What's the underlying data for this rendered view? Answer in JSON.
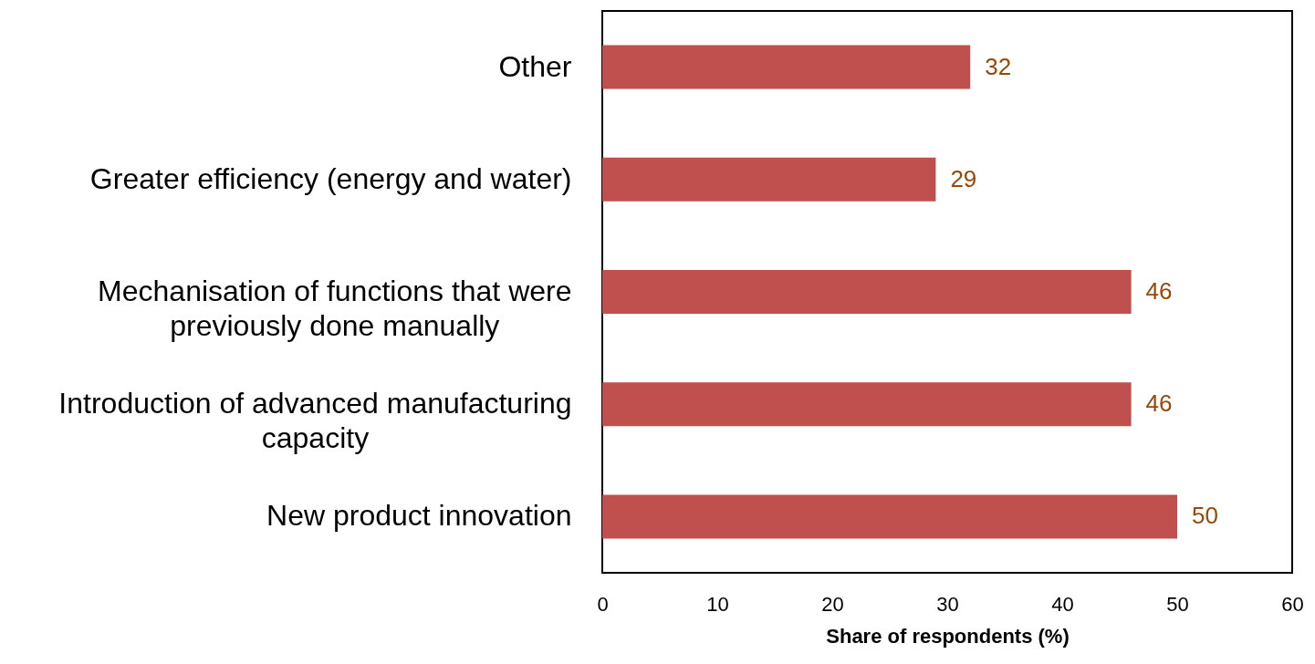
{
  "chart_data": {
    "type": "bar",
    "orientation": "horizontal",
    "categories": [
      "Other",
      "Greater efficiency (energy and water)",
      "Mechanisation of functions that were previously done manually",
      "Introduction of advanced manufacturing capacity",
      "New product innovation"
    ],
    "values": [
      32,
      29,
      46,
      46,
      50
    ],
    "color": "#c0504d",
    "data_labels": true,
    "xlabel": "Share of respondents (%)",
    "xlim": [
      0,
      60
    ],
    "xticks": [
      0,
      10,
      20,
      30,
      40,
      50,
      60
    ]
  }
}
